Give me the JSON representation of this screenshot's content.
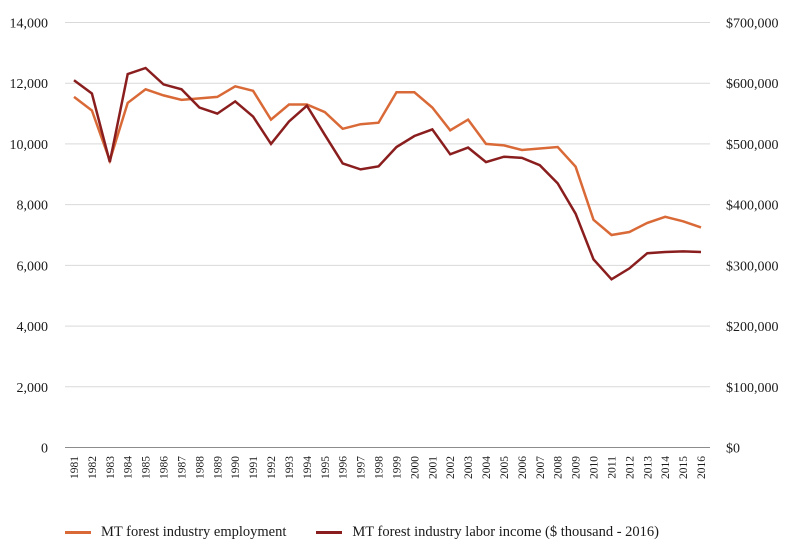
{
  "chart_data": {
    "type": "line",
    "title": "",
    "grid": "horizontal",
    "legend_position": "bottom",
    "x": [
      1981,
      1982,
      1983,
      1984,
      1985,
      1986,
      1987,
      1988,
      1989,
      1990,
      1991,
      1992,
      1993,
      1994,
      1995,
      1996,
      1997,
      1998,
      1999,
      2000,
      2001,
      2002,
      2003,
      2004,
      2005,
      2006,
      2007,
      2008,
      2009,
      2010,
      2011,
      2012,
      2013,
      2014,
      2015,
      2016
    ],
    "series": [
      {
        "name": "MT forest industry employment",
        "axis": "left",
        "color": "#d96a38",
        "values": [
          11550,
          11100,
          9450,
          11350,
          11800,
          11600,
          11450,
          11500,
          11550,
          11900,
          11750,
          10800,
          11300,
          11300,
          11050,
          10500,
          10650,
          10700,
          11700,
          11700,
          11200,
          10450,
          10800,
          10000,
          9950,
          9800,
          9850,
          9900,
          9250,
          7500,
          7000,
          7100,
          7400,
          7600,
          7450,
          7250
        ]
      },
      {
        "name": "MT forest industry labor income ($ thousand - 2016)",
        "axis": "right",
        "color": "#8a1e1e",
        "values": [
          605000,
          583000,
          470000,
          615000,
          625000,
          598000,
          590000,
          560000,
          550000,
          570000,
          545000,
          500000,
          537000,
          563000,
          515000,
          468000,
          458000,
          463000,
          495000,
          513000,
          524000,
          483000,
          494000,
          470000,
          479000,
          477000,
          465000,
          435000,
          385000,
          310000,
          277000,
          295000,
          320000,
          322000,
          323000,
          322000
        ]
      }
    ],
    "left_axis": {
      "min": 0,
      "max": 14000,
      "step": 2000,
      "tick_labels": [
        "0",
        "2,000",
        "4,000",
        "6,000",
        "8,000",
        "10,000",
        "12,000",
        "14,000"
      ]
    },
    "right_axis": {
      "min": 0,
      "max": 700000,
      "step": 100000,
      "tick_labels": [
        "$0",
        "$100,000",
        "$200,000",
        "$300,000",
        "$400,000",
        "$500,000",
        "$600,000",
        "$700,000"
      ]
    }
  },
  "legend": {
    "items": [
      {
        "label": "MT forest industry employment"
      },
      {
        "label": "MT forest industry labor income ($ thousand - 2016)"
      }
    ]
  },
  "colors": {
    "gridline": "#d9d9d9",
    "axis_line": "#8c8c8c",
    "tick_text": "#1a1a1a"
  }
}
